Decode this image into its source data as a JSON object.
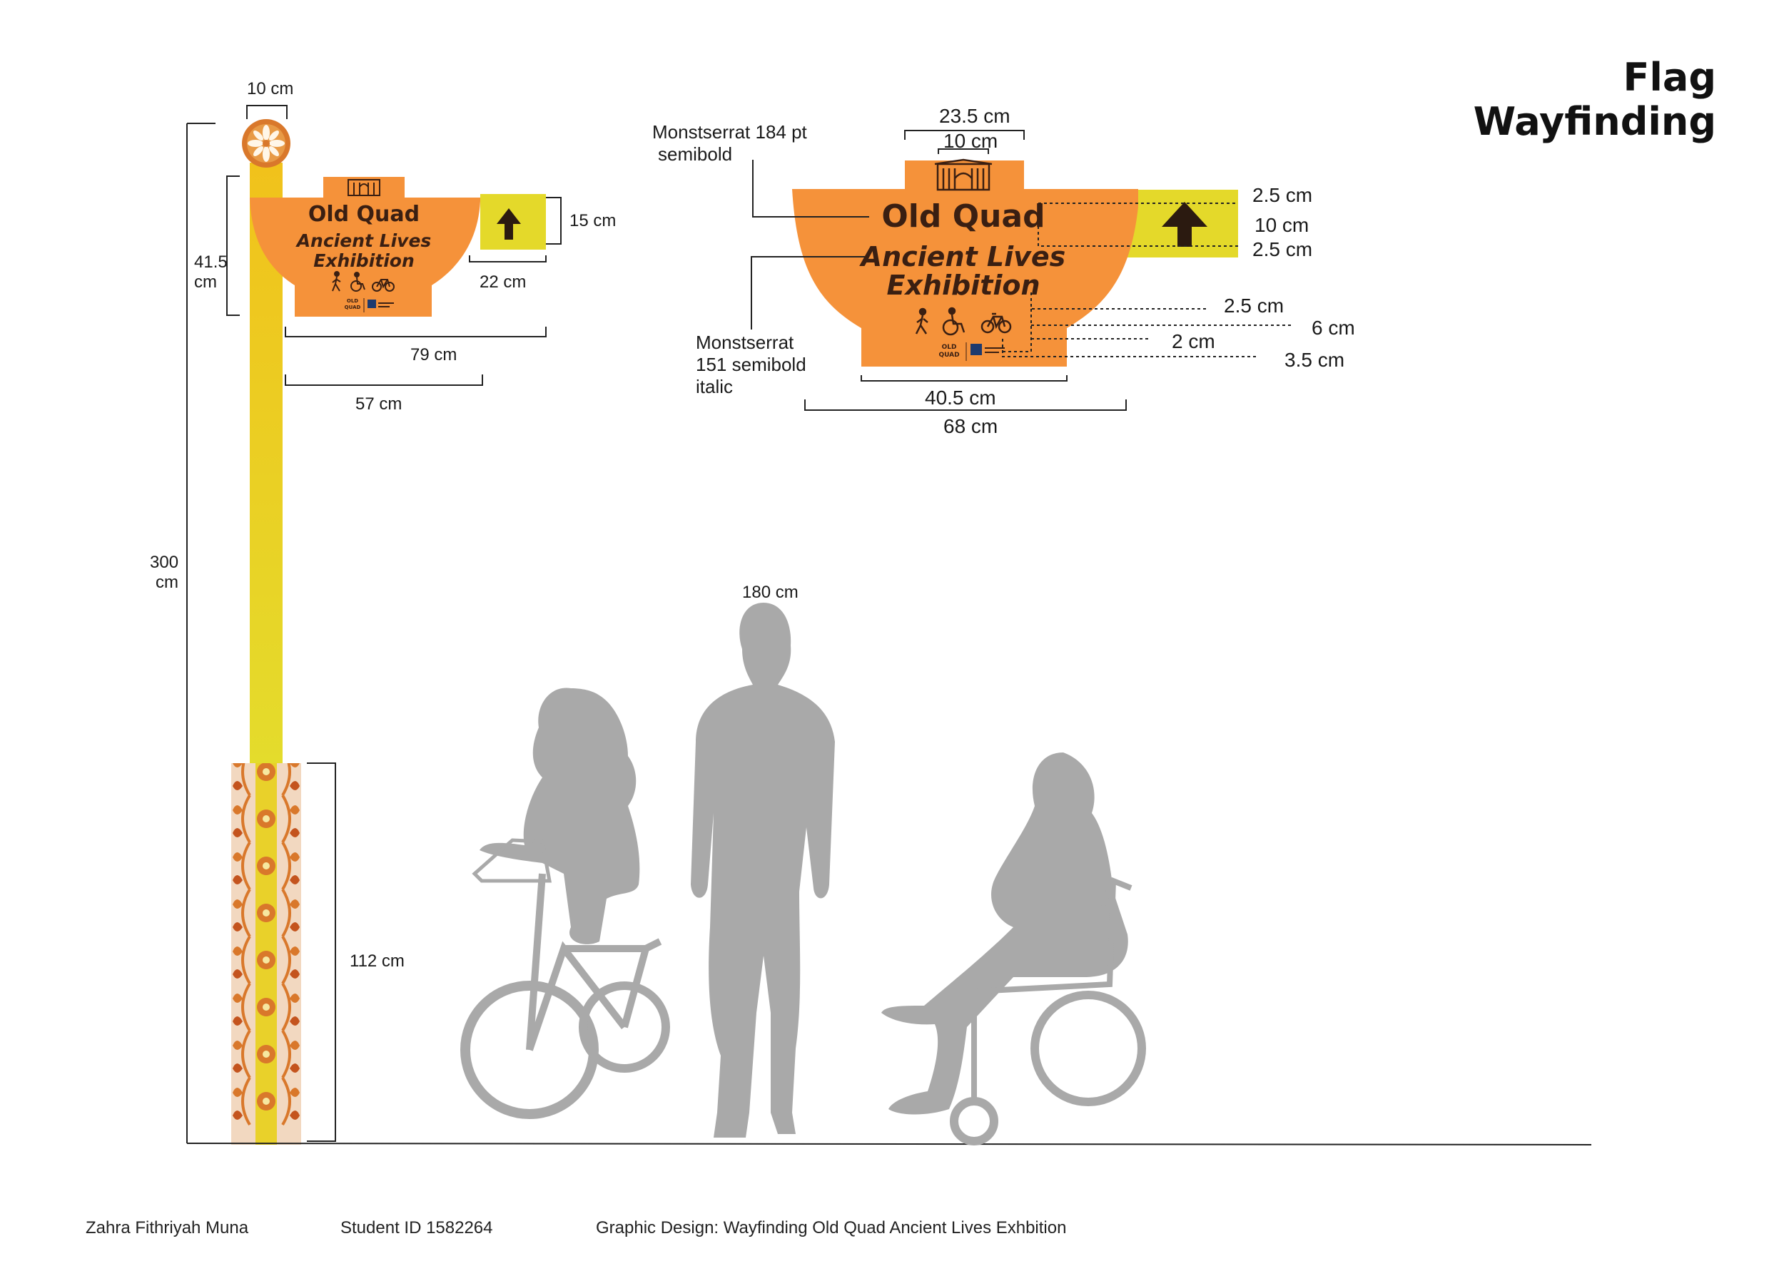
{
  "title": {
    "line1": "Flag",
    "line2": "Wayfinding"
  },
  "sign": {
    "name": "Old Quad",
    "subtitle_line1": "Ancient Lives",
    "subtitle_line2": "Exhibition",
    "logo_text_line1": "OLD",
    "logo_text_line2": "QUAD",
    "icons": [
      "pedestrian-icon",
      "wheelchair-icon",
      "bicycle-icon",
      "gate-icon",
      "arrow-up-icon"
    ]
  },
  "dimensions_small": {
    "top_ornament": "10 cm",
    "sign_height_value": "41.5",
    "sign_height_unit": "cm",
    "arrow_height": "15 cm",
    "arrow_width": "22 cm",
    "sign_width": "79 cm",
    "panel_width": "57 cm",
    "pole_height_value": "300",
    "pole_height_unit": "cm",
    "pattern_height": "112  cm",
    "person_height": "180 cm"
  },
  "dimensions_detail": {
    "top_width": "23.5 cm",
    "gate_width": "10 cm",
    "margin_top": "2.5 cm",
    "arrow_size": "10 cm",
    "margin_bottom": "2.5 cm",
    "icon_gap": "2.5 cm",
    "icon_height": "6 cm",
    "logo_gap": "2 cm",
    "logo_height": "3.5 cm",
    "base_width": "40.5 cm",
    "bowl_width": "68 cm",
    "font_note_title_line1": "Monstserrat 184 pt",
    "font_note_title_line2": "semibold",
    "font_note_sub_line1": "Monstserrat",
    "font_note_sub_line2": "151 semibold",
    "font_note_sub_line3": "italic"
  },
  "footer": {
    "author": "Zahra Fithriyah Muna",
    "student_id": "Student ID 1582264",
    "project": "Graphic Design: Wayfinding Old Quad Ancient Lives Exhbition"
  },
  "colors": {
    "orange": "#F5923A",
    "yellow": "#E4D92A",
    "dark_brown": "#3A1F12",
    "silhouette": "#A9A9A9",
    "pattern_orange": "#D9782B"
  }
}
